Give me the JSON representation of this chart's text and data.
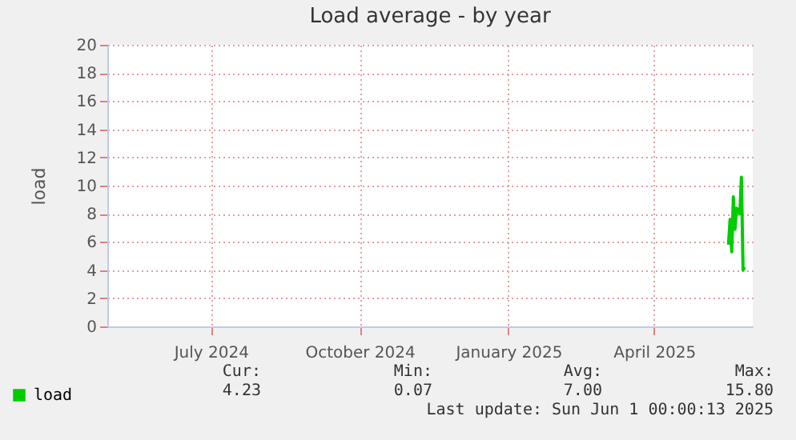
{
  "chart_data": {
    "type": "line",
    "title": "Load average - by year",
    "ylabel": "load",
    "x": [
      "2025-05-17",
      "2025-05-18",
      "2025-05-19",
      "2025-05-20",
      "2025-05-21",
      "2025-05-22",
      "2025-05-24",
      "2025-05-25",
      "2025-05-26",
      "2025-05-27"
    ],
    "series": [
      {
        "name": "load",
        "color": "#00cc00",
        "values": [
          5.8,
          7.6,
          5.3,
          9.2,
          6.9,
          8.4,
          8.0,
          10.6,
          4.0,
          4.2
        ]
      }
    ],
    "xlim": [
      "2024-04-28",
      "2025-06-01"
    ],
    "xticks": [
      {
        "value": "2024-07-01",
        "label": "July 2024"
      },
      {
        "value": "2024-10-01",
        "label": "October 2024"
      },
      {
        "value": "2025-01-01",
        "label": "January 2025"
      },
      {
        "value": "2025-04-01",
        "label": "April 2025"
      }
    ],
    "ylim": [
      0,
      20
    ],
    "yticks": [
      0,
      2,
      4,
      6,
      8,
      10,
      12,
      14,
      16,
      18,
      20
    ],
    "grid": true,
    "legend": "bottom left",
    "marker": "none",
    "line_style": "solid",
    "annotations": [
      "Cur:",
      "4.23",
      "Min:",
      "0.07",
      "Avg:",
      "7.00",
      "Max:",
      "15.80",
      "Last update: Sun Jun  1 00:00:13 2025"
    ]
  }
}
